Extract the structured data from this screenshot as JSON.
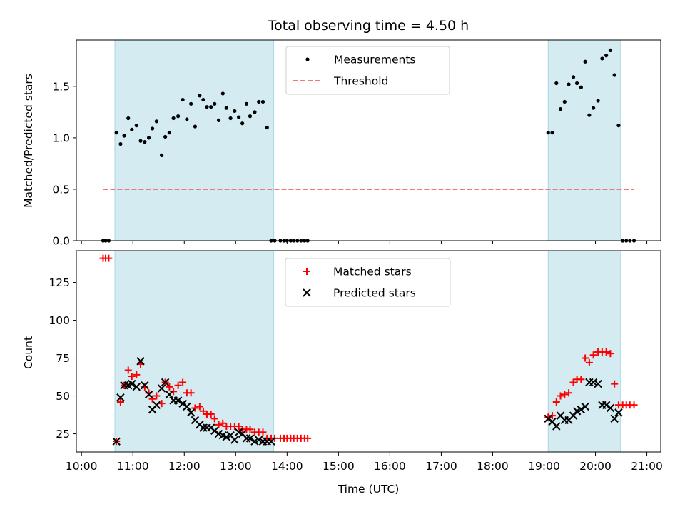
{
  "colors": {
    "shade": "#a8d8e4",
    "measure": "#000000",
    "threshold": "#f07878",
    "matched": "#ff0000",
    "predicted": "#000000",
    "axis": "#000000"
  },
  "chart_data": [
    {
      "type": "scatter",
      "title": "Total observing time = 4.50 h",
      "ylabel": "Matched/Predicted stars",
      "xlim": [
        9.9,
        21.27
      ],
      "ylim": [
        0,
        1.95
      ],
      "x_unit": "hours UTC",
      "yticks": [
        0,
        0.5,
        1.0,
        1.5
      ],
      "ytick_labels": [
        "0.0",
        "0.5",
        "1.0",
        "1.5"
      ],
      "legend": {
        "position": "top-center",
        "entries": [
          "Measurements",
          "Threshold"
        ]
      },
      "shaded_intervals": [
        [
          10.65,
          13.74
        ],
        [
          19.08,
          20.49
        ]
      ],
      "threshold": {
        "name": "Threshold",
        "y": 0.5,
        "x": [
          10.42,
          20.75
        ]
      },
      "series": [
        {
          "name": "Measurements",
          "x": [
            10.42,
            10.47,
            10.53,
            10.68,
            10.76,
            10.83,
            10.91,
            10.98,
            11.07,
            11.15,
            11.23,
            11.31,
            11.38,
            11.46,
            11.56,
            11.63,
            11.71,
            11.79,
            11.88,
            11.97,
            12.05,
            12.13,
            12.21,
            12.3,
            12.37,
            12.44,
            12.52,
            12.59,
            12.67,
            12.75,
            12.82,
            12.9,
            12.98,
            13.06,
            13.13,
            13.21,
            13.28,
            13.37,
            13.45,
            13.53,
            13.61,
            13.69,
            13.76,
            13.87,
            13.94,
            14.0,
            14.07,
            14.13,
            14.2,
            14.27,
            14.34,
            14.4,
            19.08,
            19.16,
            19.24,
            19.32,
            19.4,
            19.48,
            19.57,
            19.64,
            19.72,
            19.8,
            19.88,
            19.96,
            20.05,
            20.13,
            20.21,
            20.29,
            20.37,
            20.45,
            20.53,
            20.6,
            20.67,
            20.75
          ],
          "y": [
            0,
            0,
            0,
            1.05,
            0.94,
            1.02,
            1.19,
            1.08,
            1.12,
            0.97,
            0.96,
            1.0,
            1.09,
            1.16,
            0.83,
            1.01,
            1.05,
            1.19,
            1.21,
            1.37,
            1.18,
            1.33,
            1.11,
            1.41,
            1.37,
            1.3,
            1.3,
            1.33,
            1.17,
            1.43,
            1.29,
            1.19,
            1.26,
            1.2,
            1.14,
            1.33,
            1.21,
            1.25,
            1.35,
            1.35,
            1.1,
            0,
            0,
            0,
            0,
            0,
            0,
            0,
            0,
            0,
            0,
            0,
            1.05,
            1.05,
            1.53,
            1.28,
            1.35,
            1.52,
            1.59,
            1.53,
            1.49,
            1.74,
            1.22,
            1.29,
            1.36,
            1.77,
            1.8,
            1.85,
            1.61,
            1.12,
            0,
            0,
            0,
            0
          ]
        }
      ]
    },
    {
      "type": "scatter",
      "xlabel": "Time (UTC)",
      "ylabel": "Count",
      "xlim": [
        9.9,
        21.27
      ],
      "ylim": [
        13,
        146
      ],
      "xticks": [
        10,
        11,
        12,
        13,
        14,
        15,
        16,
        17,
        18,
        19,
        20,
        21
      ],
      "xtick_labels": [
        "10:00",
        "11:00",
        "12:00",
        "13:00",
        "14:00",
        "15:00",
        "16:00",
        "17:00",
        "18:00",
        "19:00",
        "20:00",
        "21:00"
      ],
      "yticks": [
        25,
        50,
        75,
        100,
        125
      ],
      "ytick_labels": [
        "25",
        "50",
        "75",
        "100",
        "125"
      ],
      "legend": {
        "position": "top-center",
        "entries": [
          "Matched stars",
          "Predicted stars"
        ]
      },
      "shaded_intervals": [
        [
          10.65,
          13.74
        ],
        [
          19.08,
          20.49
        ]
      ],
      "series": [
        {
          "name": "Matched stars",
          "marker": "+",
          "x": [
            10.42,
            10.47,
            10.53,
            10.68,
            10.76,
            10.83,
            10.91,
            10.98,
            11.07,
            11.15,
            11.23,
            11.31,
            11.38,
            11.46,
            11.56,
            11.63,
            11.71,
            11.79,
            11.88,
            11.97,
            12.05,
            12.13,
            12.21,
            12.3,
            12.37,
            12.44,
            12.52,
            12.59,
            12.67,
            12.75,
            12.82,
            12.9,
            12.98,
            13.06,
            13.13,
            13.21,
            13.28,
            13.37,
            13.45,
            13.53,
            13.61,
            13.69,
            13.76,
            13.87,
            13.94,
            14.0,
            14.07,
            14.13,
            14.2,
            14.27,
            14.34,
            14.4,
            19.08,
            19.16,
            19.24,
            19.32,
            19.4,
            19.48,
            19.57,
            19.64,
            19.72,
            19.8,
            19.88,
            19.96,
            20.05,
            20.13,
            20.21,
            20.29,
            20.37,
            20.45,
            20.53,
            20.6,
            20.67,
            20.75
          ],
          "y": [
            141,
            141,
            141,
            20,
            46,
            57,
            67,
            63,
            64,
            71,
            56,
            52,
            48,
            50,
            45,
            59,
            56,
            53,
            57,
            59,
            52,
            52,
            42,
            43,
            40,
            38,
            38,
            35,
            31,
            32,
            30,
            30,
            30,
            30,
            28,
            28,
            28,
            26,
            26,
            26,
            22,
            22,
            22,
            22,
            22,
            22,
            22,
            22,
            22,
            22,
            22,
            22,
            36,
            37,
            46,
            50,
            51,
            52,
            59,
            61,
            61,
            75,
            72,
            77,
            79,
            79,
            79,
            78,
            58,
            44,
            44,
            44,
            44,
            44
          ]
        },
        {
          "name": "Predicted stars",
          "marker": "x",
          "x": [
            10.68,
            10.76,
            10.83,
            10.91,
            10.98,
            11.07,
            11.15,
            11.23,
            11.31,
            11.38,
            11.46,
            11.56,
            11.63,
            11.71,
            11.79,
            11.88,
            11.97,
            12.05,
            12.13,
            12.21,
            12.3,
            12.37,
            12.44,
            12.52,
            12.59,
            12.67,
            12.75,
            12.82,
            12.9,
            12.98,
            13.06,
            13.13,
            13.21,
            13.28,
            13.37,
            13.45,
            13.53,
            13.61,
            13.69,
            19.08,
            19.16,
            19.24,
            19.32,
            19.4,
            19.48,
            19.57,
            19.64,
            19.72,
            19.8,
            19.88,
            19.96,
            20.05,
            20.13,
            20.21,
            20.29,
            20.37,
            20.45
          ],
          "y": [
            20,
            49,
            57,
            57,
            58,
            56,
            73,
            57,
            51,
            41,
            44,
            55,
            59,
            51,
            47,
            47,
            45,
            43,
            39,
            34,
            31,
            29,
            29,
            29,
            27,
            25,
            24,
            23,
            24,
            21,
            26,
            25,
            22,
            22,
            20,
            21,
            20,
            20,
            20,
            35,
            33,
            30,
            37,
            34,
            34,
            37,
            40,
            41,
            43,
            59,
            59,
            58,
            44,
            44,
            42,
            35,
            39
          ]
        }
      ]
    }
  ]
}
